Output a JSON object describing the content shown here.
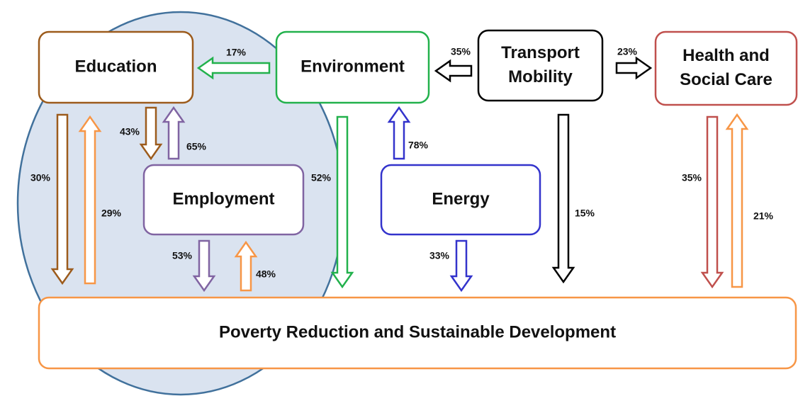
{
  "nodes": [
    {
      "label": [
        "Education"
      ]
    },
    {
      "label": [
        "Environment"
      ]
    },
    {
      "label": [
        "Transport",
        "Mobility"
      ]
    },
    {
      "label": [
        "Health and",
        "Social Care"
      ]
    },
    {
      "label": [
        "Employment"
      ]
    },
    {
      "label": [
        "Energy"
      ]
    },
    {
      "label": [
        "Poverty Reduction and Sustainable Development"
      ]
    }
  ],
  "edges": [
    {
      "label": "17%"
    },
    {
      "label": "35%"
    },
    {
      "label": "23%"
    },
    {
      "label": "30%"
    },
    {
      "label": "29%"
    },
    {
      "label": "43%"
    },
    {
      "label": "65%"
    },
    {
      "label": "53%"
    },
    {
      "label": "48%"
    },
    {
      "label": "52%"
    },
    {
      "label": "78%"
    },
    {
      "label": "33%"
    },
    {
      "label": "15%"
    },
    {
      "label": "35%"
    },
    {
      "label": "21%"
    }
  ]
}
